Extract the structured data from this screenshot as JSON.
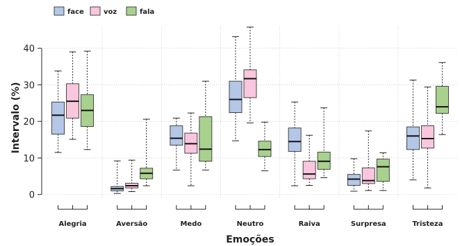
{
  "chart_data": {
    "type": "boxplot",
    "xlabel": "Emoções",
    "ylabel": "Intervalo (%)",
    "ylim": [
      -1,
      46
    ],
    "yticks": [
      0,
      10,
      20,
      30,
      40
    ],
    "grid": true,
    "legend_position": "top-left",
    "categories": [
      "Alegria",
      "Aversão",
      "Medo",
      "Neutro",
      "Raiva",
      "Surpresa",
      "Tristeza"
    ],
    "series": [
      {
        "name": "face",
        "color": "#b4c7e7",
        "boxes": [
          {
            "min": 11.5,
            "q1": 16.5,
            "median": 21.7,
            "q3": 25.3,
            "max": 33.8
          },
          {
            "min": 0.3,
            "q1": 1.0,
            "median": 1.6,
            "q3": 2.2,
            "max": 9.2
          },
          {
            "min": 6.7,
            "q1": 13.5,
            "median": 15.4,
            "q3": 18.8,
            "max": 20.9
          },
          {
            "min": 14.7,
            "q1": 22.4,
            "median": 26.0,
            "q3": 31.0,
            "max": 43.2
          },
          {
            "min": 2.4,
            "q1": 11.8,
            "median": 14.5,
            "q3": 18.2,
            "max": 25.3
          },
          {
            "min": 0.9,
            "q1": 2.5,
            "median": 4.2,
            "q3": 5.5,
            "max": 9.8
          },
          {
            "min": 4.0,
            "q1": 12.3,
            "median": 16.0,
            "q3": 18.5,
            "max": 31.3
          }
        ]
      },
      {
        "name": "voz",
        "color": "#f9c6de",
        "boxes": [
          {
            "min": 15.1,
            "q1": 20.9,
            "median": 25.5,
            "q3": 30.3,
            "max": 39.0
          },
          {
            "min": 0.8,
            "q1": 1.8,
            "median": 2.4,
            "q3": 3.1,
            "max": 9.4
          },
          {
            "min": 2.4,
            "q1": 11.3,
            "median": 13.9,
            "q3": 16.8,
            "max": 22.3
          },
          {
            "min": 19.6,
            "q1": 26.5,
            "median": 31.7,
            "q3": 34.1,
            "max": 45.8
          },
          {
            "min": 2.5,
            "q1": 4.3,
            "median": 5.6,
            "q3": 9.1,
            "max": 16.2
          },
          {
            "min": 1.1,
            "q1": 3.0,
            "median": 3.8,
            "q3": 7.3,
            "max": 17.4
          },
          {
            "min": 1.8,
            "q1": 12.7,
            "median": 15.3,
            "q3": 18.8,
            "max": 29.4
          }
        ]
      },
      {
        "name": "fala",
        "color": "#a9d18e",
        "boxes": [
          {
            "min": 12.3,
            "q1": 18.6,
            "median": 23.0,
            "q3": 27.3,
            "max": 39.2
          },
          {
            "min": 2.4,
            "q1": 4.3,
            "median": 5.8,
            "q3": 7.2,
            "max": 20.6
          },
          {
            "min": 6.7,
            "q1": 9.1,
            "median": 12.4,
            "q3": 21.3,
            "max": 31.0
          },
          {
            "min": 6.5,
            "q1": 10.4,
            "median": 12.3,
            "q3": 14.6,
            "max": 19.8
          },
          {
            "min": 4.6,
            "q1": 6.9,
            "median": 9.1,
            "q3": 11.6,
            "max": 23.7
          },
          {
            "min": 1.1,
            "q1": 3.6,
            "median": 7.6,
            "q3": 9.7,
            "max": 11.4
          },
          {
            "min": 16.4,
            "q1": 22.2,
            "median": 24.0,
            "q3": 29.6,
            "max": 36.1
          }
        ]
      }
    ]
  }
}
